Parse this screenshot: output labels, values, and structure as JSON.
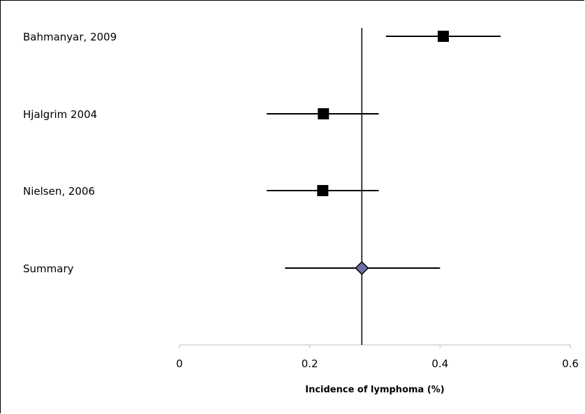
{
  "chart_data": {
    "type": "forest",
    "xlabel": "Incidence of lymphoma (%)",
    "xlim": [
      0,
      0.6
    ],
    "xticks": [
      0,
      0.2,
      0.4,
      0.6
    ],
    "xtick_labels": [
      "0",
      "0.2",
      "0.4",
      "0.6"
    ],
    "reference_line": 0.28,
    "studies": [
      {
        "label": "Bahmanyar, 2009",
        "estimate": 0.405,
        "ci_low": 0.317,
        "ci_high": 0.493,
        "marker": "square"
      },
      {
        "label": "Hjalgrim 2004",
        "estimate": 0.221,
        "ci_low": 0.134,
        "ci_high": 0.306,
        "marker": "square"
      },
      {
        "label": "Nielsen, 2006",
        "estimate": 0.22,
        "ci_low": 0.134,
        "ci_high": 0.306,
        "marker": "square"
      },
      {
        "label": "Summary",
        "estimate": 0.28,
        "ci_low": 0.162,
        "ci_high": 0.4,
        "marker": "diamond"
      }
    ],
    "colors": {
      "square_marker": "#000000",
      "diamond_marker": "#7070a8",
      "lines": "#000000"
    }
  }
}
